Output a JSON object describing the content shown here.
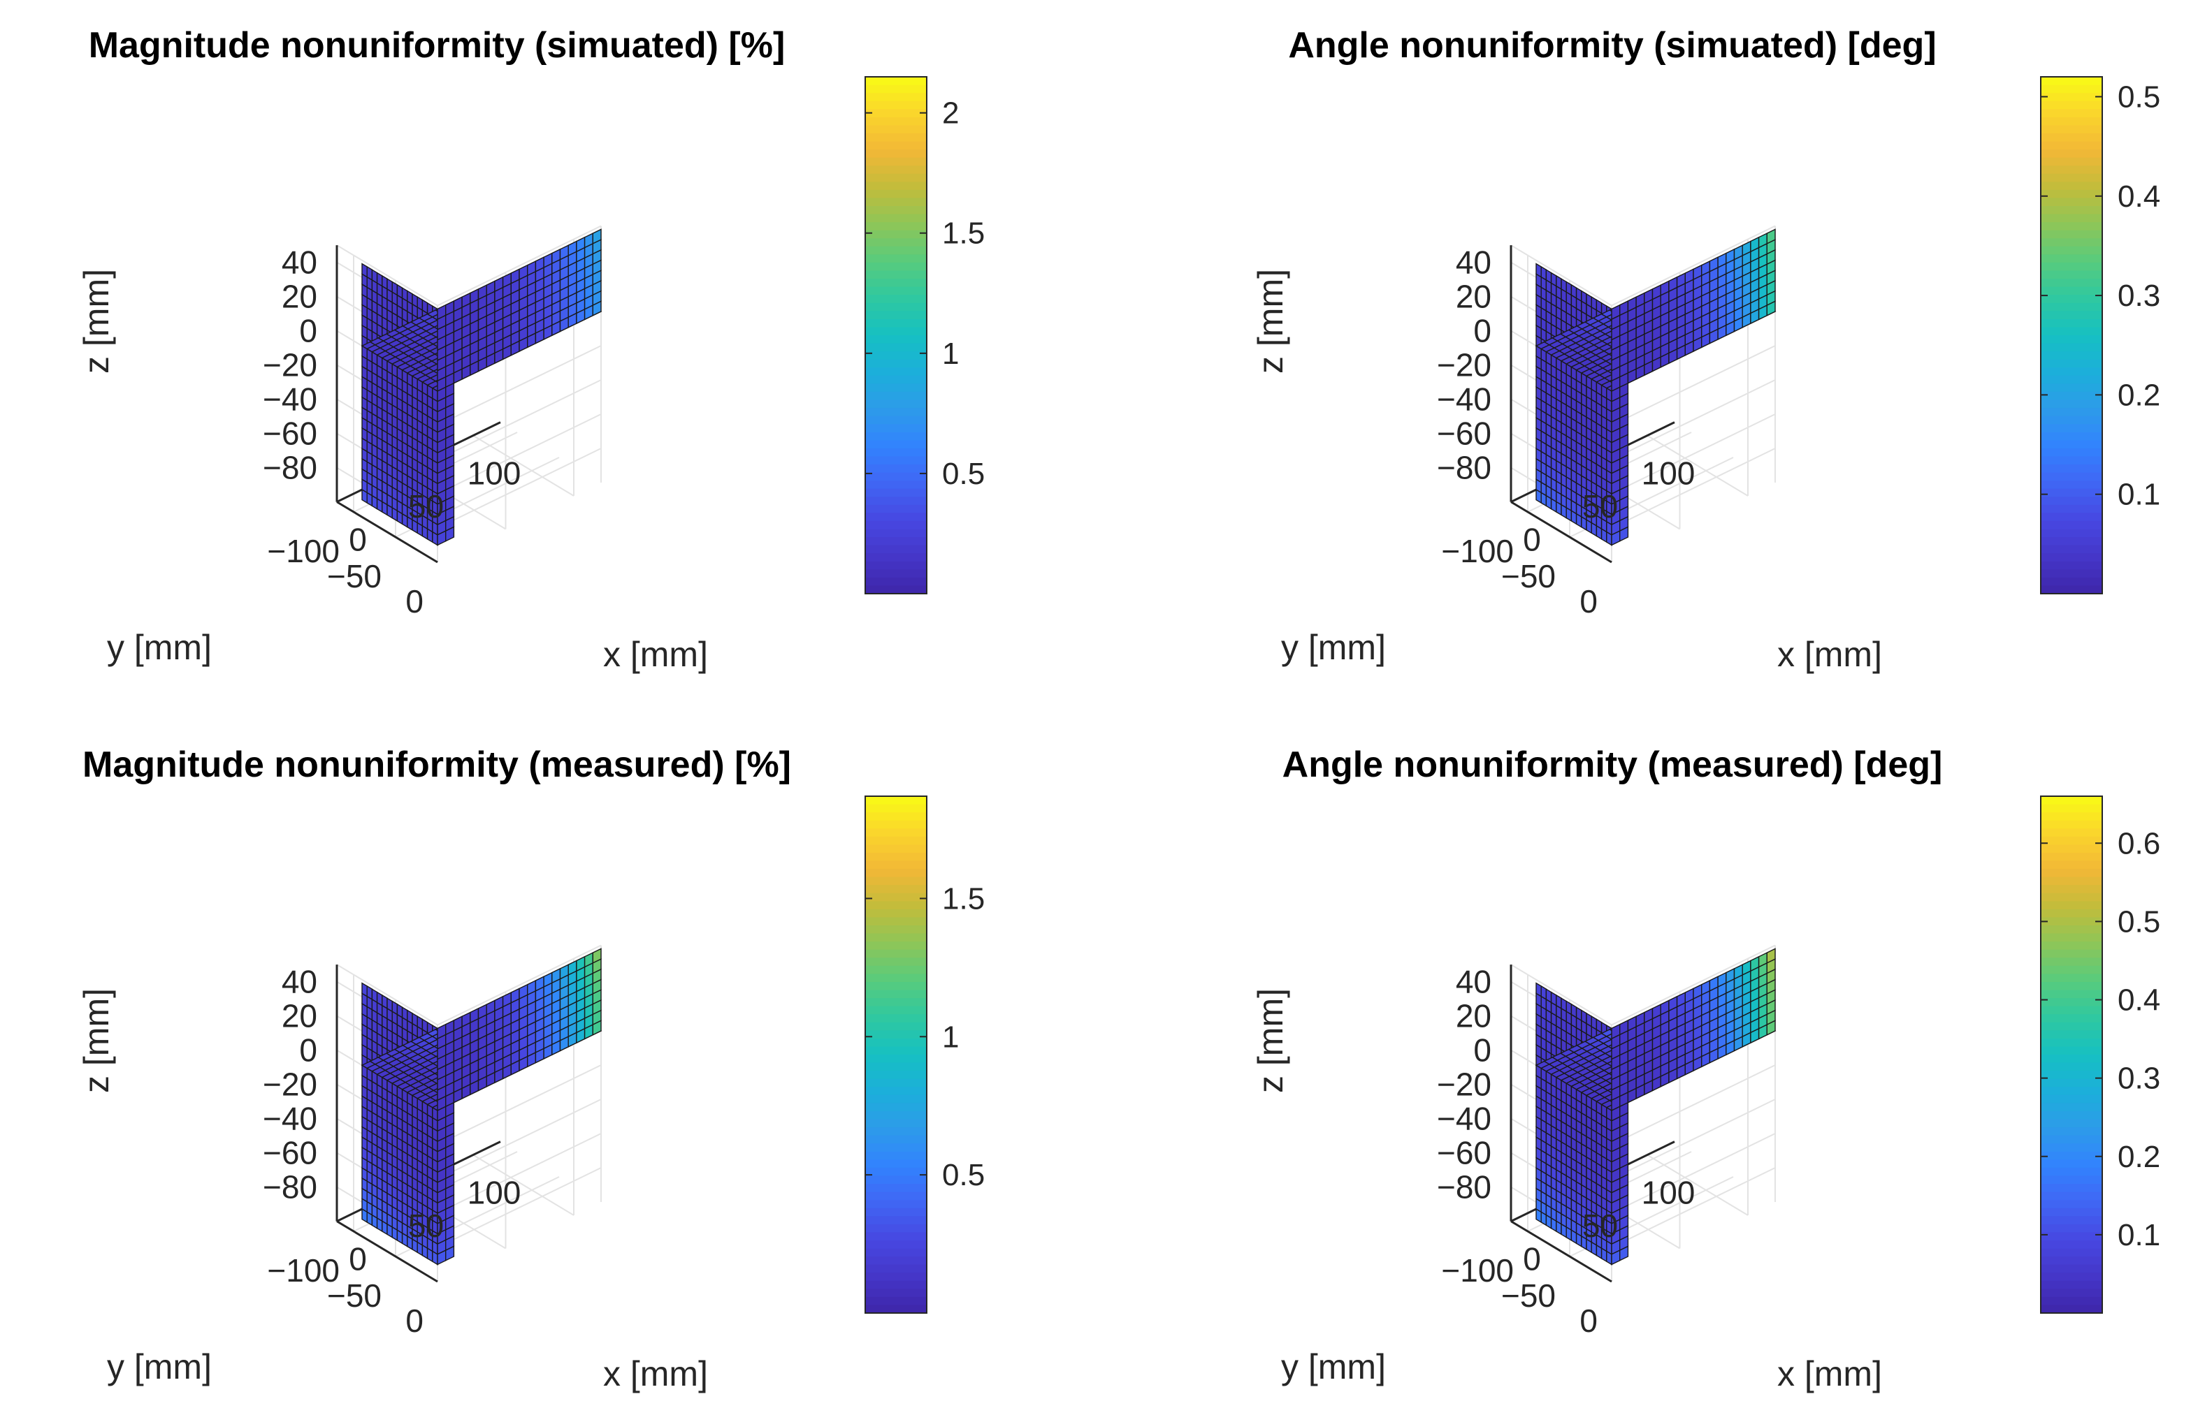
{
  "chart_data": [
    {
      "type": "surface3d",
      "title": "Magnitude nonuniformity (simuated) [%]",
      "xlabel": "x [mm]",
      "ylabel": "y [mm]",
      "zlabel": "z [mm]",
      "xticks": [
        "0",
        "50",
        "100"
      ],
      "yticks": [
        "0",
        "−50",
        "−100"
      ],
      "zticks": [
        "40",
        "20",
        "0",
        "−20",
        "−40",
        "−60",
        "−80"
      ],
      "xlim": [
        0,
        120
      ],
      "ylim": [
        -120,
        0
      ],
      "zlim": [
        -100,
        50
      ],
      "colorbar": {
        "min": 0,
        "max": 2.15,
        "ticks": [
          "2",
          "1.5",
          "1",
          "0.5"
        ],
        "tick_values": [
          2,
          1.5,
          1,
          0.5
        ]
      },
      "peak_value": 0.75,
      "surfaces": [
        "x-y plane at z=0",
        "x-z plane at y=0",
        "y-z plane at x=0"
      ]
    },
    {
      "type": "surface3d",
      "title": "Angle nonuniformity (simuated) [deg]",
      "xlabel": "x [mm]",
      "ylabel": "y [mm]",
      "zlabel": "z [mm]",
      "xticks": [
        "0",
        "50",
        "100"
      ],
      "yticks": [
        "0",
        "−50",
        "−100"
      ],
      "zticks": [
        "40",
        "20",
        "0",
        "−20",
        "−40",
        "−60",
        "−80"
      ],
      "xlim": [
        0,
        120
      ],
      "ylim": [
        -120,
        0
      ],
      "zlim": [
        -100,
        50
      ],
      "colorbar": {
        "min": 0,
        "max": 0.52,
        "ticks": [
          "0.5",
          "0.4",
          "0.3",
          "0.2",
          "0.1"
        ],
        "tick_values": [
          0.5,
          0.4,
          0.3,
          0.2,
          0.1
        ]
      },
      "peak_value": 0.32,
      "surfaces": [
        "x-y plane at z=0",
        "x-z plane at y=0",
        "y-z plane at x=0"
      ]
    },
    {
      "type": "surface3d",
      "title": "Magnitude nonuniformity (measured) [%]",
      "xlabel": "x [mm]",
      "ylabel": "y [mm]",
      "zlabel": "z [mm]",
      "xticks": [
        "0",
        "50",
        "100"
      ],
      "yticks": [
        "0",
        "−50",
        "−100"
      ],
      "zticks": [
        "40",
        "20",
        "0",
        "−20",
        "−40",
        "−60",
        "−80"
      ],
      "xlim": [
        0,
        120
      ],
      "ylim": [
        -120,
        0
      ],
      "zlim": [
        -100,
        50
      ],
      "colorbar": {
        "min": 0,
        "max": 1.87,
        "ticks": [
          "1.5",
          "1",
          "0.5"
        ],
        "tick_values": [
          1.5,
          1,
          0.5
        ]
      },
      "peak_value": 1.3,
      "surfaces": [
        "x-y plane at z=0",
        "x-z plane at y=0",
        "y-z plane at x=0"
      ]
    },
    {
      "type": "surface3d",
      "title": "Angle nonuniformity (measured) [deg]",
      "xlabel": "x [mm]",
      "ylabel": "y [mm]",
      "zlabel": "z [mm]",
      "xticks": [
        "0",
        "50",
        "100"
      ],
      "yticks": [
        "0",
        "−50",
        "−100"
      ],
      "zticks": [
        "40",
        "20",
        "0",
        "−20",
        "−40",
        "−60",
        "−80"
      ],
      "xlim": [
        0,
        120
      ],
      "ylim": [
        -120,
        0
      ],
      "zlim": [
        -100,
        50
      ],
      "colorbar": {
        "min": 0,
        "max": 0.66,
        "ticks": [
          "0.6",
          "0.5",
          "0.4",
          "0.3",
          "0.2",
          "0.1"
        ],
        "tick_values": [
          0.6,
          0.5,
          0.4,
          0.3,
          0.2,
          0.1
        ]
      },
      "peak_value": 0.5,
      "surfaces": [
        "x-y plane at z=0",
        "x-z plane at y=0",
        "y-z plane at x=0"
      ]
    }
  ],
  "colormap": [
    "#3e26a8",
    "#4536c8",
    "#4748e2",
    "#4066f4",
    "#3283fe",
    "#2d9be9",
    "#1cafda",
    "#16c0c2",
    "#2fc8a0",
    "#58cb7d",
    "#8dc658",
    "#c2bc3b",
    "#f2b837",
    "#fad52c",
    "#f9fb15"
  ]
}
